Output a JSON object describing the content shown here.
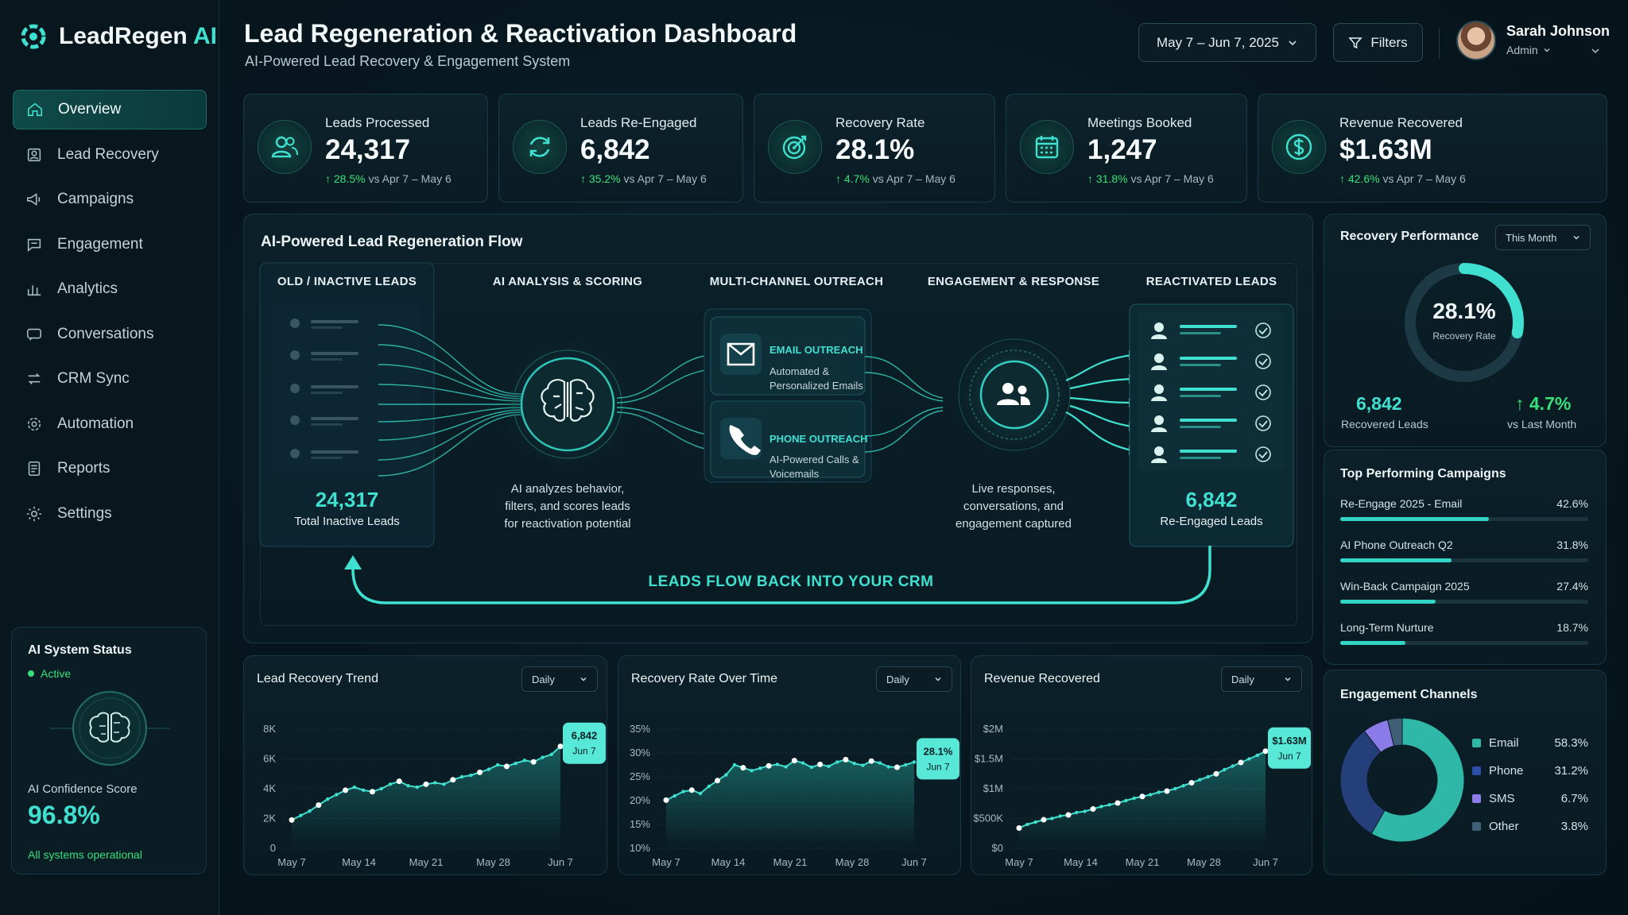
{
  "brand": {
    "name": "LeadRegen",
    "suffix": "AI"
  },
  "header": {
    "title": "Lead Regeneration & Reactivation Dashboard",
    "subtitle": "AI-Powered Lead Recovery & Engagement System",
    "date_range": "May 7 – Jun 7, 2025",
    "filters_label": "Filters",
    "user": {
      "name": "Sarah Johnson",
      "role": "Admin"
    }
  },
  "nav": [
    {
      "label": "Overview",
      "icon": "home-icon",
      "active": true
    },
    {
      "label": "Lead Recovery",
      "icon": "lead-recovery-icon"
    },
    {
      "label": "Campaigns",
      "icon": "megaphone-icon"
    },
    {
      "label": "Engagement",
      "icon": "chat-bubble-icon"
    },
    {
      "label": "Analytics",
      "icon": "bar-chart-icon"
    },
    {
      "label": "Conversations",
      "icon": "conversation-icon"
    },
    {
      "label": "CRM Sync",
      "icon": "sync-arrows-icon"
    },
    {
      "label": "Automation",
      "icon": "automation-gear-icon"
    },
    {
      "label": "Reports",
      "icon": "report-doc-icon"
    },
    {
      "label": "Settings",
      "icon": "gear-icon"
    }
  ],
  "ai_status": {
    "title": "AI System Status",
    "state": "Active",
    "confidence_label": "AI Confidence Score",
    "confidence_value": "96.8%",
    "footer": "All systems operational"
  },
  "kpis": [
    {
      "label": "Leads Processed",
      "value": "24,317",
      "change": "28.5%",
      "period": "vs Apr 7 – May 6",
      "icon": "users-icon"
    },
    {
      "label": "Leads Re-Engaged",
      "value": "6,842",
      "change": "35.2%",
      "period": "vs Apr 7 – May 6",
      "icon": "refresh-icon"
    },
    {
      "label": "Recovery Rate",
      "value": "28.1%",
      "change": "4.7%",
      "period": "vs Apr 7 – May 6",
      "icon": "target-icon"
    },
    {
      "label": "Meetings Booked",
      "value": "1,247",
      "change": "31.8%",
      "period": "vs Apr 7 – May 6",
      "icon": "calendar-icon"
    },
    {
      "label": "Revenue Recovered",
      "value": "$1.63M",
      "change": "42.6%",
      "period": "vs Apr 7 – May 6",
      "icon": "dollar-icon"
    }
  ],
  "flow": {
    "title": "AI-Powered Lead Regeneration Flow",
    "col1": {
      "title": "OLD / INACTIVE LEADS",
      "value": "24,317",
      "caption": "Total Inactive Leads"
    },
    "col2": {
      "title": "AI ANALYSIS & SCORING",
      "caption": [
        "AI analyzes behavior,",
        "filters, and scores leads",
        "for reactivation potential"
      ]
    },
    "col3": {
      "title": "MULTI-CHANNEL OUTREACH",
      "email": {
        "title": "EMAIL OUTREACH",
        "desc1": "Automated &",
        "desc2": "Personalized Emails"
      },
      "phone": {
        "title": "PHONE OUTREACH",
        "desc1": "AI-Powered Calls &",
        "desc2": "Voicemails"
      }
    },
    "col4": {
      "title": "ENGAGEMENT & RESPONSE",
      "caption": [
        "Live responses,",
        "conversations, and",
        "engagement captured"
      ]
    },
    "col5": {
      "title": "REACTIVATED LEADS",
      "value": "6,842",
      "caption": "Re-Engaged Leads"
    },
    "loop_label": "LEADS FLOW BACK INTO YOUR CRM"
  },
  "recovery_performance": {
    "title": "Recovery Performance",
    "period": "This Month",
    "rate": "28.1%",
    "rate_label": "Recovery Rate",
    "rate_fraction": 0.281,
    "recovered_value": "6,842",
    "recovered_label": "Recovered Leads",
    "change_value": "4.7%",
    "change_label": "vs Last Month"
  },
  "top_campaigns": {
    "title": "Top Performing Campaigns",
    "items": [
      {
        "name": "Re-Engage 2025 - Email",
        "value": "42.6%",
        "pct": 42.6
      },
      {
        "name": "AI Phone Outreach Q2",
        "value": "31.8%",
        "pct": 31.8
      },
      {
        "name": "Win-Back Campaign 2025",
        "value": "27.4%",
        "pct": 27.4
      },
      {
        "name": "Long-Term Nurture",
        "value": "18.7%",
        "pct": 18.7
      }
    ]
  },
  "engagement_channels": {
    "title": "Engagement Channels",
    "items": [
      {
        "name": "Email",
        "value": "58.3%",
        "pct": 58.3,
        "color": "#2fb8a8"
      },
      {
        "name": "Phone",
        "value": "31.2%",
        "pct": 31.2,
        "color": "#243f7a"
      },
      {
        "name": "SMS",
        "value": "6.7%",
        "pct": 6.7,
        "color": "#8a7be8"
      },
      {
        "name": "Other",
        "value": "3.8%",
        "pct": 3.8,
        "color": "#3f5f78"
      }
    ]
  },
  "chart_data": [
    {
      "type": "line",
      "title": "Lead Recovery Trend",
      "period": "Daily",
      "x_labels": [
        "May 7",
        "May 14",
        "May 21",
        "May 28",
        "Jun 7"
      ],
      "y_ticks": [
        "8K",
        "6K",
        "4K",
        "2K",
        "0"
      ],
      "ylim": [
        0,
        8000
      ],
      "values": [
        1900,
        2200,
        2500,
        2900,
        3300,
        3600,
        3900,
        4100,
        3900,
        3800,
        4000,
        4300,
        4500,
        4200,
        4100,
        4300,
        4400,
        4300,
        4600,
        4800,
        4900,
        5100,
        5300,
        5600,
        5500,
        5700,
        5900,
        5800,
        6100,
        6300,
        6842
      ],
      "callout": {
        "value": "6,842",
        "date": "Jun 7"
      }
    },
    {
      "type": "line",
      "title": "Recovery Rate Over Time",
      "period": "Daily",
      "x_labels": [
        "May 7",
        "May 14",
        "May 21",
        "May 28",
        "Jun 7"
      ],
      "y_ticks": [
        "35%",
        "30%",
        "25%",
        "20%",
        "15%",
        "10%"
      ],
      "ylim": [
        10,
        35
      ],
      "values": [
        20.1,
        21.0,
        21.9,
        22.2,
        21.5,
        23.0,
        24.2,
        25.4,
        27.5,
        26.9,
        26.3,
        26.8,
        27.3,
        27.6,
        27.1,
        28.4,
        27.9,
        27.0,
        27.6,
        27.2,
        28.1,
        28.6,
        27.8,
        27.4,
        28.3,
        27.9,
        27.1,
        27.0,
        27.5,
        28.1
      ],
      "callout": {
        "value": "28.1%",
        "date": "Jun 7"
      }
    },
    {
      "type": "line",
      "title": "Revenue Recovered",
      "period": "Daily",
      "x_labels": [
        "May 7",
        "May 14",
        "May 21",
        "May 28",
        "Jun 7"
      ],
      "y_ticks": [
        "$2M",
        "$1.5M",
        "$1M",
        "$500K",
        "$0"
      ],
      "ylim": [
        0,
        2000000
      ],
      "values": [
        340000,
        400000,
        440000,
        480000,
        500000,
        540000,
        560000,
        600000,
        620000,
        660000,
        700000,
        730000,
        760000,
        800000,
        840000,
        870000,
        900000,
        940000,
        960000,
        1000000,
        1050000,
        1100000,
        1150000,
        1200000,
        1250000,
        1320000,
        1380000,
        1440000,
        1500000,
        1560000,
        1630000
      ],
      "callout": {
        "value": "$1.63M",
        "date": "Jun 7"
      }
    }
  ]
}
